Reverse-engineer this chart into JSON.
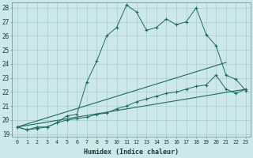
{
  "xlabel": "Humidex (Indice chaleur)",
  "xlim": [
    -0.5,
    23.5
  ],
  "ylim": [
    18.8,
    28.4
  ],
  "yticks": [
    19,
    20,
    21,
    22,
    23,
    24,
    25,
    26,
    27,
    28
  ],
  "xticks": [
    0,
    1,
    2,
    3,
    4,
    5,
    6,
    7,
    8,
    9,
    10,
    11,
    12,
    13,
    14,
    15,
    16,
    17,
    18,
    19,
    20,
    21,
    22,
    23
  ],
  "bg_color": "#cce8e8",
  "grid_color": "#aacccc",
  "line_color": "#1a6b5a",
  "series1_x": [
    0,
    1,
    2,
    3,
    4,
    5,
    6,
    7,
    8,
    9,
    10,
    11,
    12,
    13,
    14,
    15,
    16,
    17,
    18,
    19,
    20,
    21,
    22,
    23
  ],
  "series1_y": [
    19.5,
    19.3,
    19.5,
    19.5,
    19.8,
    20.3,
    20.4,
    22.7,
    24.2,
    26.0,
    26.6,
    28.2,
    27.7,
    26.4,
    26.6,
    27.2,
    26.8,
    27.0,
    28.0,
    26.1,
    25.3,
    23.2,
    22.9,
    22.1
  ],
  "series2_x": [
    0,
    1,
    2,
    3,
    4,
    5,
    6,
    7,
    8,
    9,
    10,
    11,
    12,
    13,
    14,
    15,
    16,
    17,
    18,
    19,
    20,
    21,
    22,
    23
  ],
  "series2_y": [
    19.5,
    19.3,
    19.4,
    19.5,
    19.8,
    20.0,
    20.1,
    20.2,
    20.4,
    20.5,
    20.8,
    21.0,
    21.3,
    21.5,
    21.7,
    21.9,
    22.0,
    22.2,
    22.4,
    22.5,
    23.2,
    22.2,
    21.9,
    22.2
  ],
  "series3_x": [
    0,
    21
  ],
  "series3_y": [
    19.5,
    24.1
  ],
  "series4_x": [
    0,
    23
  ],
  "series4_y": [
    19.5,
    22.2
  ]
}
